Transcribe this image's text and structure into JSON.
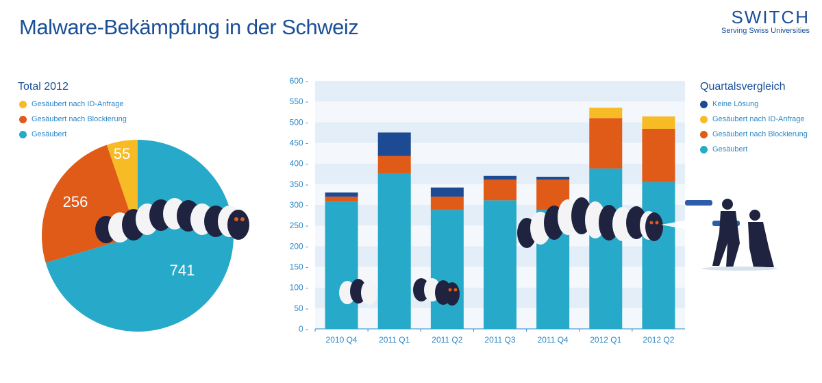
{
  "title": "Malware-Bekämpfung in der Schweiz",
  "logo": {
    "word": "SWITCH",
    "tagline": "Serving Swiss Universities"
  },
  "colors": {
    "keine_loesung": "#1c4a93",
    "id_anfrage": "#f7bb26",
    "blockierung": "#e05a18",
    "gesaeubert": "#27a9c9",
    "grid_band": "#e3eef8"
  },
  "chart_data": [
    {
      "type": "pie",
      "title": "Total 2012",
      "legend": [
        "Gesäubert nach ID-Anfrage",
        "Gesäubert nach Blockierung",
        "Gesäubert"
      ],
      "slices": [
        {
          "name": "Gesäubert nach ID-Anfrage",
          "value": 55,
          "label": "55",
          "color": "#f7bb26"
        },
        {
          "name": "Gesäubert nach Blockierung",
          "value": 256,
          "label": "256",
          "color": "#e05a18"
        },
        {
          "name": "Gesäubert",
          "value": 741,
          "label": "741",
          "color": "#27a9c9"
        }
      ]
    },
    {
      "type": "bar",
      "stacked": true,
      "title": "Quartalsvergleich",
      "categories": [
        "2010 Q4",
        "2011 Q1",
        "2011 Q2",
        "2011 Q3",
        "2011 Q4",
        "2012 Q1",
        "2012 Q2"
      ],
      "ylim": [
        0,
        600
      ],
      "yticks": [
        0,
        50,
        100,
        150,
        200,
        250,
        300,
        350,
        400,
        450,
        500,
        550,
        600
      ],
      "grid": "alternating bands",
      "legend_position": "right",
      "series": [
        {
          "name": "Gesäubert",
          "color": "#27a9c9",
          "values": [
            308,
            375,
            288,
            311,
            288,
            388,
            355
          ]
        },
        {
          "name": "Gesäubert nach Blockierung",
          "color": "#e05a18",
          "values": [
            12,
            43,
            32,
            50,
            73,
            122,
            129
          ]
        },
        {
          "name": "Gesäubert nach ID-Anfrage",
          "color": "#f7bb26",
          "values": [
            0,
            0,
            0,
            0,
            0,
            25,
            30
          ]
        },
        {
          "name": "Keine Lösung",
          "color": "#1c4a93",
          "values": [
            10,
            57,
            22,
            9,
            7,
            0,
            0
          ]
        }
      ],
      "legend": [
        "Keine Lösung",
        "Gesäubert nach ID-Anfrage",
        "Gesäubert nach Blockierung",
        "Gesäubert"
      ]
    }
  ]
}
